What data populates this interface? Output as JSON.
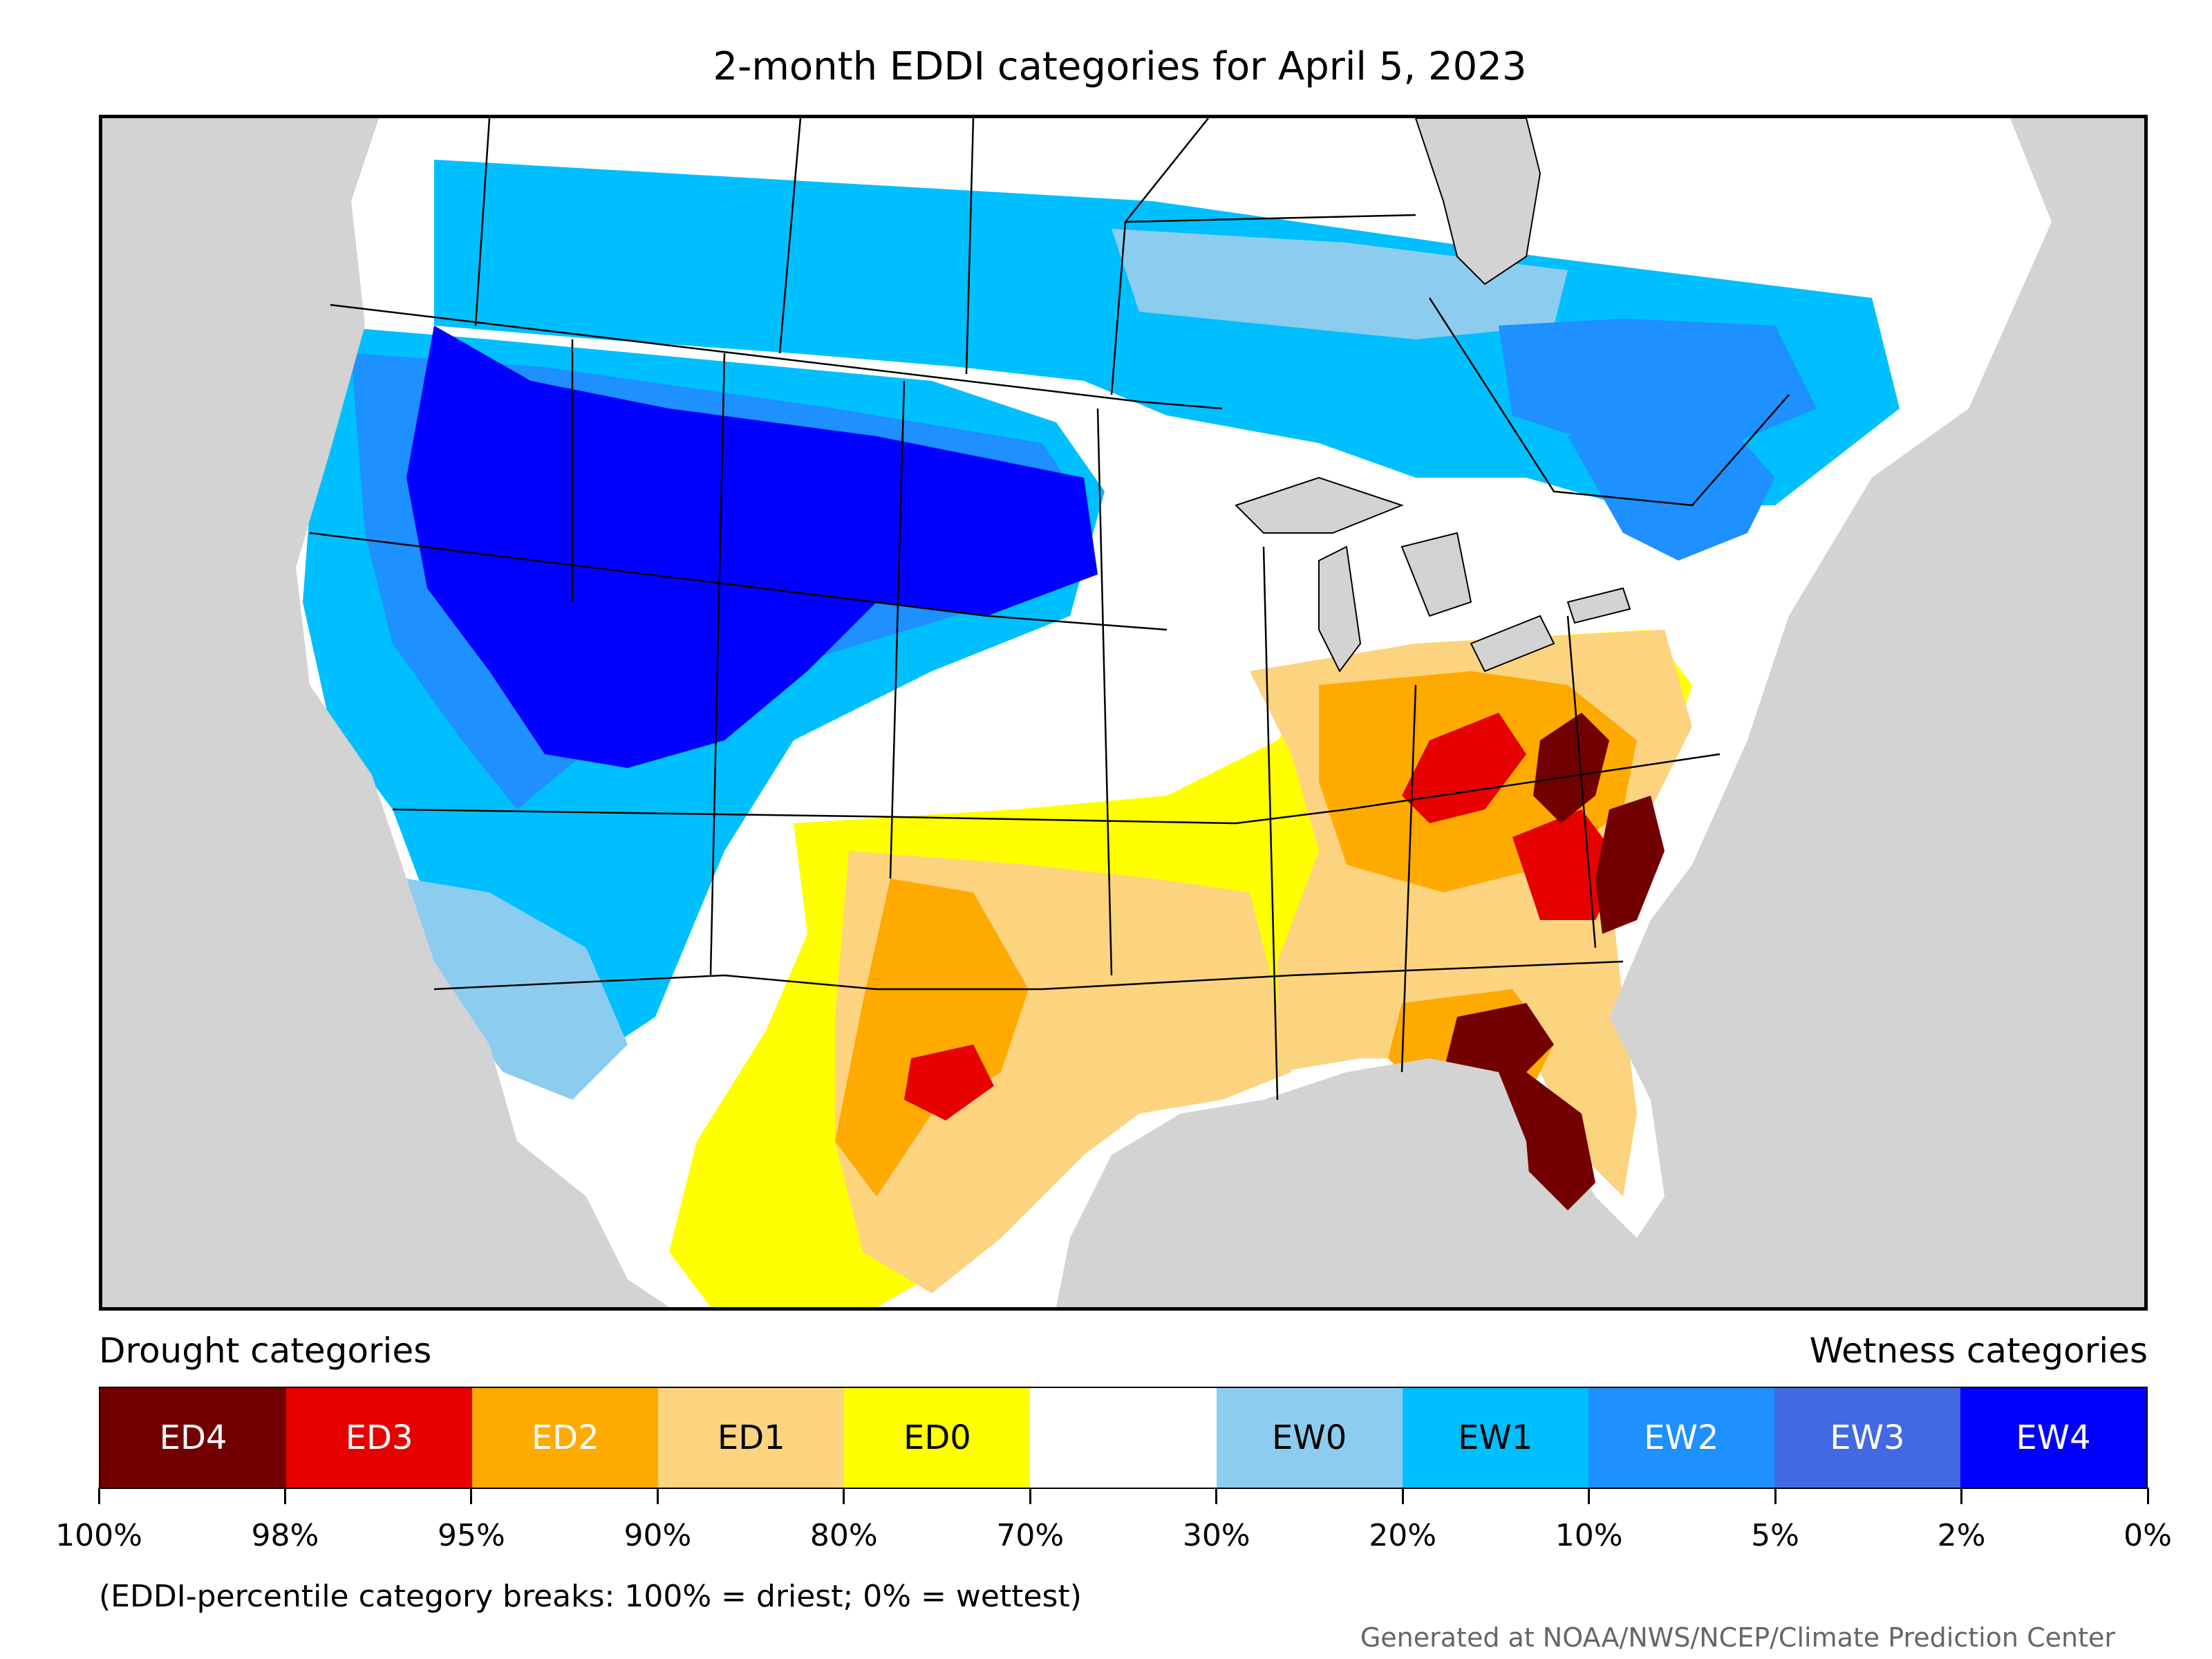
{
  "title": "2-month EDDI categories for April 5, 2023",
  "colors": {
    "ED4": "#730000",
    "ED3": "#e60000",
    "ED2": "#ffaa00",
    "ED1": "#fcd37f",
    "ED0": "#ffff00",
    "neutral": "#ffffff",
    "EW0": "#8ccdef",
    "EW1": "#00bfff",
    "EW2": "#1e90ff",
    "EW3": "#4169e1",
    "EW4": "#0000ff",
    "background": "#d3d3d3",
    "water": "#d3d3d3"
  },
  "map": {
    "region": "Contiguous United States with southern Canada and northern Mexico",
    "projection": "Lambert conformal",
    "patterns": [
      {
        "region": "Pacific Northwest and northern Rockies",
        "category": "EW4"
      },
      {
        "region": "Great Basin and Utah",
        "category": "EW4"
      },
      {
        "region": "Northern Plains",
        "category": "EW4"
      },
      {
        "region": "California",
        "category": "EW1"
      },
      {
        "region": "Southern Canada",
        "category": "EW1"
      },
      {
        "region": "Ohio Valley",
        "category": "ED2"
      },
      {
        "region": "Florida peninsula",
        "category": "ED4"
      },
      {
        "region": "Eastern North Carolina",
        "category": "ED4"
      },
      {
        "region": "West Virginia and Virginia",
        "category": "ED4"
      },
      {
        "region": "Central Texas",
        "category": "ED3"
      },
      {
        "region": "Southern Plains",
        "category": "ED1"
      }
    ]
  },
  "legend": {
    "drought_heading": "Drought categories",
    "wetness_heading": "Wetness categories",
    "categories": [
      {
        "label": "ED4",
        "color": "#730000",
        "text_color": "#ffffff"
      },
      {
        "label": "ED3",
        "color": "#e60000",
        "text_color": "#ffffff"
      },
      {
        "label": "ED2",
        "color": "#ffaa00",
        "text_color": "#ffffff"
      },
      {
        "label": "ED1",
        "color": "#fcd37f",
        "text_color": "#000000"
      },
      {
        "label": "ED0",
        "color": "#ffff00",
        "text_color": "#000000"
      },
      {
        "label": "",
        "color": "#ffffff",
        "text_color": "#000000"
      },
      {
        "label": "EW0",
        "color": "#8ccdef",
        "text_color": "#000000"
      },
      {
        "label": "EW1",
        "color": "#00bfff",
        "text_color": "#000000"
      },
      {
        "label": "EW2",
        "color": "#1e90ff",
        "text_color": "#ffffff"
      },
      {
        "label": "EW3",
        "color": "#4169e1",
        "text_color": "#ffffff"
      },
      {
        "label": "EW4",
        "color": "#0000ff",
        "text_color": "#ffffff"
      }
    ],
    "breaks": [
      "100%",
      "98%",
      "95%",
      "90%",
      "80%",
      "70%",
      "30%",
      "20%",
      "10%",
      "5%",
      "2%",
      "0%"
    ]
  },
  "note": "(EDDI-percentile category breaks: 100% = driest; 0% = wettest)",
  "credit": "Generated at NOAA/NWS/NCEP/Climate Prediction Center"
}
